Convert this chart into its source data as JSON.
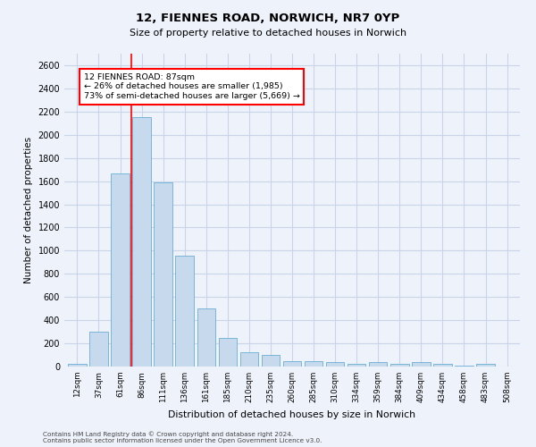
{
  "title1": "12, FIENNES ROAD, NORWICH, NR7 0YP",
  "title2": "Size of property relative to detached houses in Norwich",
  "xlabel": "Distribution of detached houses by size in Norwich",
  "ylabel": "Number of detached properties",
  "bar_labels": [
    "12sqm",
    "37sqm",
    "61sqm",
    "86sqm",
    "111sqm",
    "136sqm",
    "161sqm",
    "185sqm",
    "210sqm",
    "235sqm",
    "260sqm",
    "285sqm",
    "310sqm",
    "334sqm",
    "359sqm",
    "384sqm",
    "409sqm",
    "434sqm",
    "458sqm",
    "483sqm",
    "508sqm"
  ],
  "bar_values": [
    25,
    300,
    1670,
    2150,
    1590,
    960,
    500,
    250,
    120,
    100,
    50,
    50,
    35,
    20,
    35,
    20,
    35,
    20,
    5,
    25,
    0
  ],
  "bar_color": "#c6d9ed",
  "bar_edge_color": "#6aadd5",
  "annotation_text_line1": "12 FIENNES ROAD: 87sqm",
  "annotation_text_line2": "← 26% of detached houses are smaller (1,985)",
  "annotation_text_line3": "73% of semi-detached houses are larger (5,669) →",
  "annotation_box_color": "white",
  "annotation_box_edge_color": "red",
  "red_line_color": "red",
  "ylim": [
    0,
    2700
  ],
  "yticks": [
    0,
    200,
    400,
    600,
    800,
    1000,
    1200,
    1400,
    1600,
    1800,
    2000,
    2200,
    2400,
    2600
  ],
  "grid_color": "#c8d4e8",
  "footer1": "Contains HM Land Registry data © Crown copyright and database right 2024.",
  "footer2": "Contains public sector information licensed under the Open Government Licence v3.0.",
  "bg_color": "#eef2fa"
}
